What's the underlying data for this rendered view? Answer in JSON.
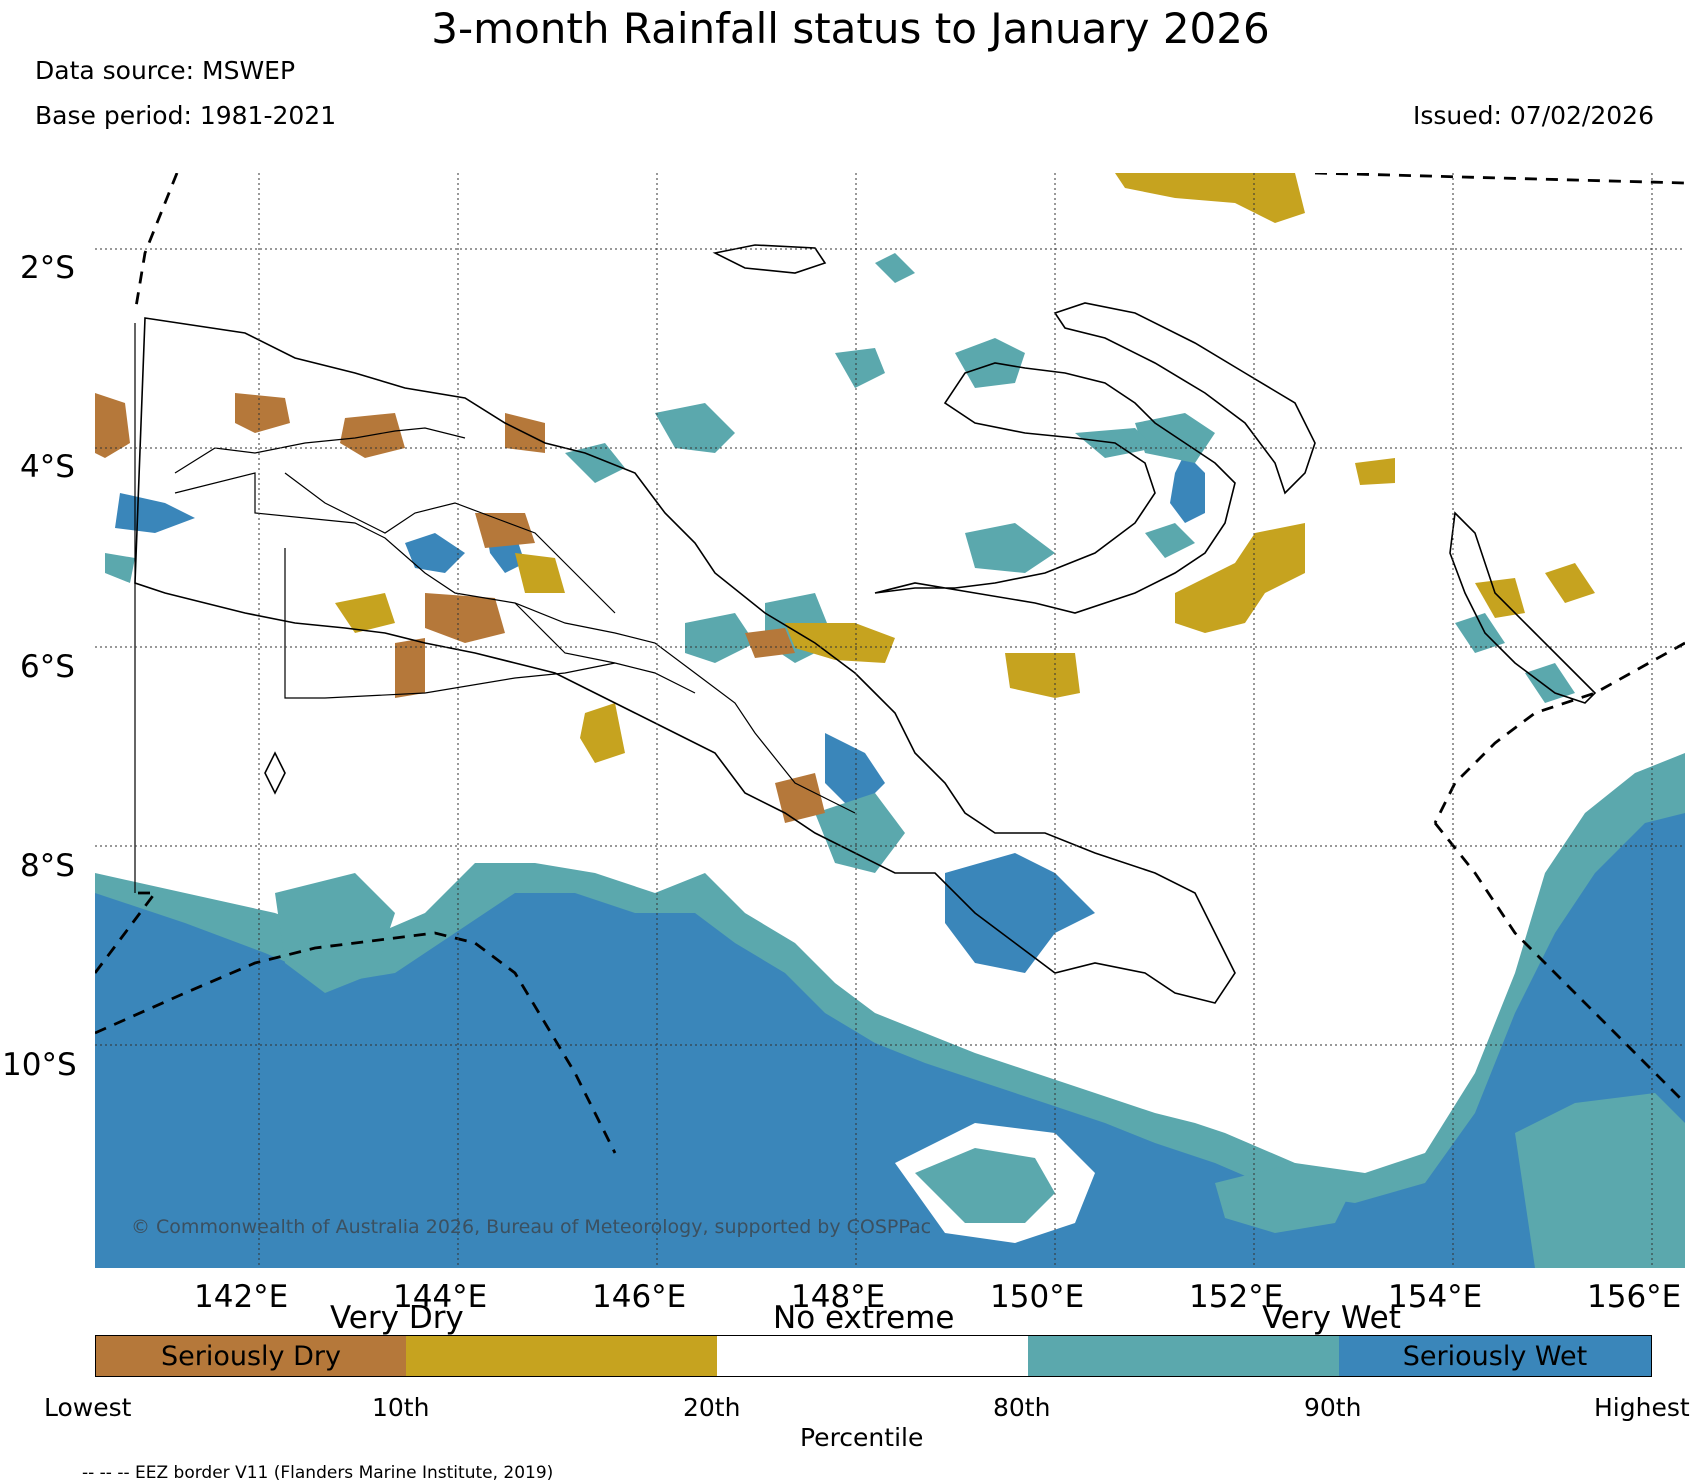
{
  "title": "3-month Rainfall status to January 2026",
  "data_source": "Data source: MSWEP",
  "base_period": "Base period: 1981-2021",
  "issued": "Issued: 07/02/2026",
  "copyright": "© Commonwealth of Australia 2026, Bureau of Meteorology, supported by COSPPac",
  "lat_labels": [
    "2°S",
    "4°S",
    "6°S",
    "8°S",
    "10°S"
  ],
  "lon_labels": [
    "142°E",
    "144°E",
    "146°E",
    "148°E",
    "150°E",
    "152°E",
    "154°E",
    "156°E"
  ],
  "legend": {
    "groups": [
      "Very Dry",
      "No extreme",
      "Very Wet"
    ],
    "categories": [
      {
        "label": "Seriously Dry",
        "color": "#b5783a"
      },
      {
        "label": "",
        "color": "#c6a31f"
      },
      {
        "label": "",
        "color": "#ffffff"
      },
      {
        "label": "",
        "color": "#5ba8ad"
      },
      {
        "label": "Seriously Wet",
        "color": "#3a86ba"
      }
    ],
    "percentile_ticks": [
      "Lowest",
      "10th",
      "20th",
      "80th",
      "90th",
      "Highest"
    ],
    "axis_title": "Percentile"
  },
  "footnote": "-- -- -- EEZ border V11 (Flanders Marine Institute, 2019)"
}
